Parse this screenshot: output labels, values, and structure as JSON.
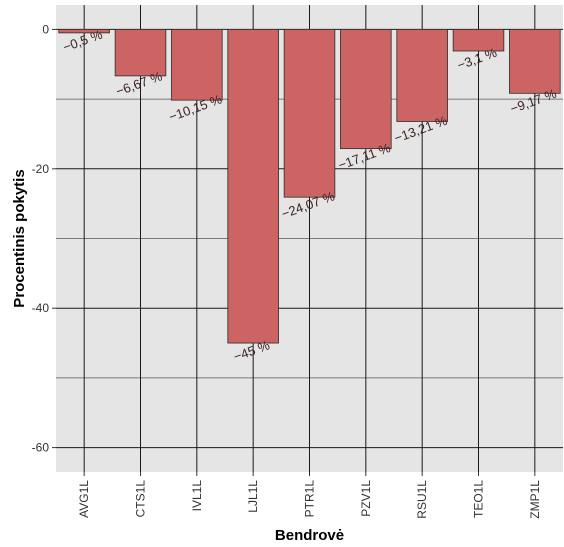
{
  "chart_data": {
    "type": "bar",
    "title": "",
    "xlabel": "Bendrovė",
    "ylabel": "Procentinis pokytis",
    "categories": [
      "AVG1L",
      "CTS1L",
      "IVL1L",
      "LJL1L",
      "PTR1L",
      "PZV1L",
      "RSU1L",
      "TEO1L",
      "ZMP1L"
    ],
    "values": [
      -0.5,
      -6.67,
      -10.15,
      -45,
      -24.07,
      -17.11,
      -13.21,
      -3.1,
      -9.17
    ],
    "data_labels": [
      "−0,5 %",
      "−6,67 %",
      "−10,15 %",
      "−45 %",
      "−24,07 %",
      "−17,11 %",
      "−13,21 %",
      "−3,1 %",
      "−9,17 %"
    ],
    "ylim": [
      -63.5,
      3.5
    ],
    "y_ticks": [
      0,
      -20,
      -40,
      -60
    ],
    "y_tick_labels": [
      "0",
      "-20",
      "-40",
      "-60"
    ],
    "grid": true,
    "legend": "none",
    "colors": {
      "bar_fill": "#cd6464",
      "bar_stroke": "#2b2b2b",
      "panel_bg": "#e5e5e5",
      "grid_major": "#1a1a1a",
      "grid_minor": "#555555"
    }
  }
}
